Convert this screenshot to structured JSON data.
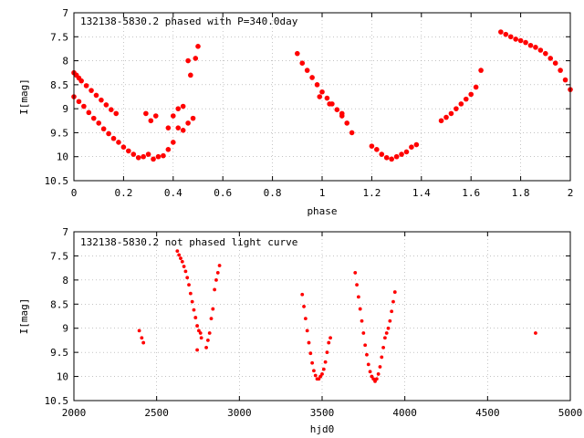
{
  "chart_data": [
    {
      "type": "scatter",
      "title": "132138-5830.2 phased with P=340.0day",
      "xlabel": "phase",
      "ylabel": "I[mag]",
      "xlim": [
        0,
        2
      ],
      "ylim": [
        10.5,
        7
      ],
      "y_inverted": true,
      "grid": true,
      "xticks": [
        0,
        0.2,
        0.4,
        0.6,
        0.8,
        1,
        1.2,
        1.4,
        1.6,
        1.8,
        2
      ],
      "xtick_labels": [
        "0",
        "0.2",
        "0.4",
        "0.6",
        "0.8",
        "1",
        "1.2",
        "1.4",
        "1.6",
        "1.8",
        "2"
      ],
      "yticks": [
        7,
        7.5,
        8,
        8.5,
        9,
        9.5,
        10,
        10.5
      ],
      "ytick_labels": [
        "7",
        "7.5",
        "8",
        "8.5",
        "9",
        "9.5",
        "10",
        "10.5"
      ],
      "marker_color": "#ff0000",
      "series": [
        {
          "x": [
            0.0,
            0.01,
            0.02,
            0.03,
            0.05,
            0.07,
            0.09,
            0.11,
            0.13,
            0.15,
            0.17,
            0.0,
            0.02,
            0.04,
            0.06,
            0.08,
            0.1,
            0.12,
            0.14,
            0.16,
            0.18,
            0.2,
            0.22,
            0.24,
            0.26,
            0.28,
            0.3,
            0.32,
            0.34,
            0.36,
            0.38,
            0.4,
            0.42,
            0.44,
            0.46,
            0.48,
            0.5,
            0.38,
            0.4,
            0.42,
            0.44,
            0.46,
            0.29,
            0.31,
            0.33,
            0.47,
            0.49,
            0.9,
            0.92,
            0.94,
            0.96,
            0.98,
            1.0,
            1.02,
            1.04,
            1.06,
            1.08,
            1.1,
            1.12,
            0.99,
            1.03,
            1.08,
            1.2,
            1.22,
            1.24,
            1.26,
            1.28,
            1.3,
            1.32,
            1.34,
            1.36,
            1.38,
            1.48,
            1.5,
            1.52,
            1.54,
            1.56,
            1.58,
            1.6,
            1.62,
            1.64,
            1.72,
            1.74,
            1.76,
            1.78,
            1.8,
            1.82,
            1.84,
            1.86,
            1.88,
            1.9,
            1.92,
            1.94,
            1.96,
            1.98,
            2.0
          ],
          "y": [
            8.25,
            8.3,
            8.36,
            8.42,
            8.52,
            8.62,
            8.72,
            8.82,
            8.92,
            9.02,
            9.1,
            8.75,
            8.85,
            8.95,
            9.08,
            9.2,
            9.3,
            9.42,
            9.52,
            9.62,
            9.7,
            9.8,
            9.88,
            9.95,
            10.02,
            10.0,
            9.95,
            10.05,
            10.0,
            9.98,
            9.85,
            9.7,
            9.4,
            9.45,
            9.3,
            9.2,
            7.7,
            9.4,
            9.15,
            9.0,
            8.95,
            8.0,
            9.1,
            9.25,
            9.15,
            8.3,
            7.95,
            7.85,
            8.05,
            8.2,
            8.35,
            8.5,
            8.65,
            8.78,
            8.9,
            9.02,
            9.15,
            9.3,
            9.5,
            8.75,
            8.9,
            9.1,
            9.78,
            9.85,
            9.95,
            10.02,
            10.05,
            10.0,
            9.95,
            9.9,
            9.8,
            9.75,
            9.25,
            9.18,
            9.1,
            9.0,
            8.9,
            8.8,
            8.7,
            8.55,
            8.2,
            7.4,
            7.45,
            7.5,
            7.55,
            7.58,
            7.62,
            7.68,
            7.72,
            7.78,
            7.85,
            7.95,
            8.05,
            8.2,
            8.4,
            8.6
          ]
        }
      ]
    },
    {
      "type": "scatter",
      "title": "132138-5830.2 not phased light curve",
      "xlabel": "hjd0",
      "ylabel": "I[mag]",
      "xlim": [
        2000,
        5000
      ],
      "ylim": [
        10.5,
        7
      ],
      "y_inverted": true,
      "grid": true,
      "xticks": [
        2000,
        2500,
        3000,
        3500,
        4000,
        4500,
        5000
      ],
      "xtick_labels": [
        "2000",
        "2500",
        "3000",
        "3500",
        "4000",
        "4500",
        "5000"
      ],
      "yticks": [
        7,
        7.5,
        8,
        8.5,
        9,
        9.5,
        10,
        10.5
      ],
      "ytick_labels": [
        "7",
        "7.5",
        "8",
        "8.5",
        "9",
        "9.5",
        "10",
        "10.5"
      ],
      "marker_color": "#ff0000",
      "series": [
        {
          "x": [
            2395,
            2410,
            2420,
            2625,
            2635,
            2645,
            2655,
            2665,
            2675,
            2685,
            2695,
            2705,
            2715,
            2725,
            2735,
            2745,
            2755,
            2765,
            2745,
            2770,
            2800,
            2810,
            2820,
            2830,
            2840,
            2850,
            2860,
            2870,
            2880,
            3380,
            3390,
            3400,
            3410,
            3420,
            3430,
            3440,
            3450,
            3460,
            3470,
            3480,
            3490,
            3500,
            3510,
            3520,
            3530,
            3540,
            3550,
            3700,
            3710,
            3720,
            3730,
            3740,
            3750,
            3760,
            3770,
            3780,
            3790,
            3800,
            3810,
            3820,
            3830,
            3840,
            3850,
            3860,
            3870,
            3880,
            3890,
            3900,
            3910,
            3920,
            3930,
            3940,
            4790
          ],
          "y": [
            9.05,
            9.2,
            9.3,
            7.4,
            7.48,
            7.55,
            7.62,
            7.72,
            7.82,
            7.95,
            8.1,
            8.28,
            8.45,
            8.62,
            8.78,
            8.95,
            9.05,
            9.1,
            9.45,
            9.2,
            9.4,
            9.25,
            9.1,
            8.8,
            8.6,
            8.2,
            8.0,
            7.85,
            7.7,
            8.3,
            8.55,
            8.8,
            9.05,
            9.3,
            9.52,
            9.72,
            9.88,
            9.98,
            10.05,
            10.05,
            10.0,
            9.95,
            9.85,
            9.7,
            9.5,
            9.3,
            9.2,
            7.85,
            8.1,
            8.35,
            8.6,
            8.85,
            9.1,
            9.35,
            9.55,
            9.75,
            9.9,
            10.0,
            10.05,
            10.1,
            10.05,
            9.95,
            9.8,
            9.6,
            9.4,
            9.2,
            9.1,
            9.0,
            8.85,
            8.65,
            8.45,
            8.25,
            9.1
          ]
        }
      ]
    }
  ]
}
